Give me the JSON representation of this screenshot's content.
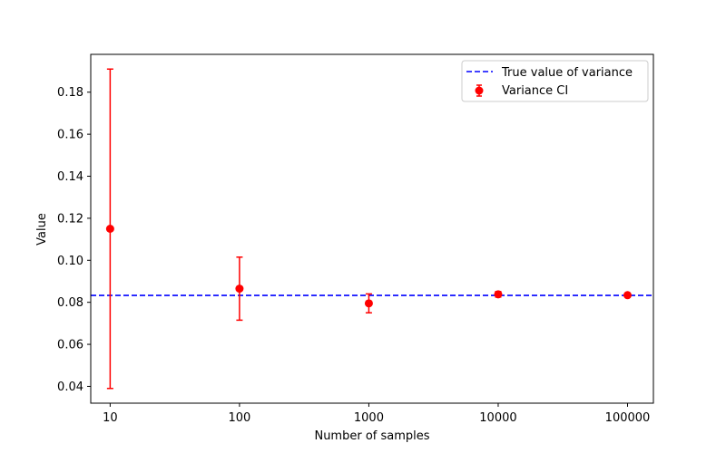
{
  "chart_data": {
    "type": "scatter",
    "title": "",
    "xlabel": "Number of samples",
    "ylabel": "Value",
    "x_scale": "log",
    "x_ticks": [
      "10",
      "100",
      "1000",
      "10000",
      "100000"
    ],
    "y_ticks": [
      "0.04",
      "0.06",
      "0.08",
      "0.10",
      "0.12",
      "0.14",
      "0.16",
      "0.18"
    ],
    "ylim": [
      0.032,
      0.198
    ],
    "xlim_decades": [
      0.85,
      5.2
    ],
    "grid": false,
    "legend_position": "upper right",
    "reference_line": {
      "name": "True value of variance",
      "y": 0.0833,
      "color": "#0000ff",
      "style": "dashed"
    },
    "series": [
      {
        "name": "Variance CI",
        "color": "#ff0000",
        "x": [
          10,
          100,
          1000,
          10000,
          100000
        ],
        "y": [
          0.115,
          0.0865,
          0.0795,
          0.0838,
          0.0834
        ],
        "ci_low": [
          0.039,
          0.0715,
          0.075,
          0.0825,
          0.083
        ],
        "ci_high": [
          0.191,
          0.1015,
          0.084,
          0.0851,
          0.0838
        ]
      }
    ]
  }
}
